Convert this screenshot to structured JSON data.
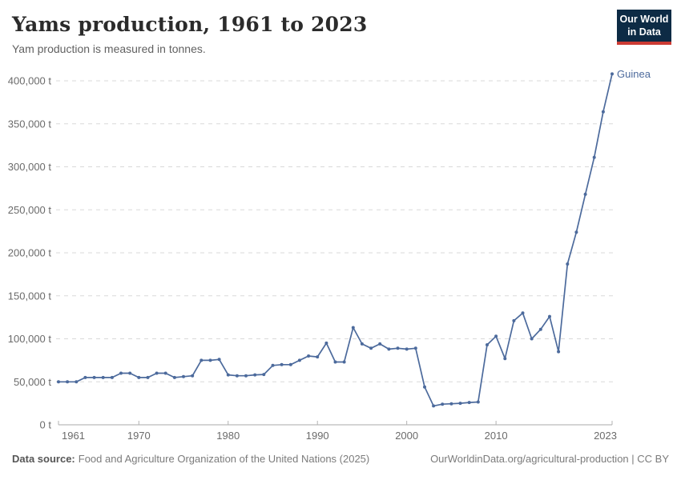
{
  "header": {
    "title": "Yams production, 1961 to 2023",
    "subtitle": "Yam production is measured in tonnes.",
    "logo": {
      "line1": "Our World",
      "line2": "in Data",
      "bg_color": "#0d2b45",
      "accent_color": "#cc3b34"
    }
  },
  "chart_data": {
    "type": "line",
    "title": "Yams production, 1961 to 2023",
    "unit": "tonnes",
    "unit_suffix": " t",
    "grid": "horizontal-dashed",
    "legend_position": "end-of-line-label",
    "xlim": [
      1961,
      2023
    ],
    "ylim": [
      0,
      400000
    ],
    "x_ticks": [
      1961,
      1970,
      1980,
      1990,
      2000,
      2010,
      2023
    ],
    "y_ticks": [
      0,
      50000,
      100000,
      150000,
      200000,
      250000,
      300000,
      350000,
      400000
    ],
    "x": [
      1961,
      1962,
      1963,
      1964,
      1965,
      1966,
      1967,
      1968,
      1969,
      1970,
      1971,
      1972,
      1973,
      1974,
      1975,
      1976,
      1977,
      1978,
      1979,
      1980,
      1981,
      1982,
      1983,
      1984,
      1985,
      1986,
      1987,
      1988,
      1989,
      1990,
      1991,
      1992,
      1993,
      1994,
      1995,
      1996,
      1997,
      1998,
      1999,
      2000,
      2001,
      2002,
      2003,
      2004,
      2005,
      2006,
      2007,
      2008,
      2009,
      2010,
      2011,
      2012,
      2013,
      2014,
      2015,
      2016,
      2017,
      2018,
      2019,
      2020,
      2021,
      2022,
      2023
    ],
    "series": [
      {
        "name": "Guinea",
        "color": "#4c6a9c",
        "values": [
          50000,
          50000,
          50000,
          55000,
          55000,
          55000,
          55000,
          60000,
          60000,
          55000,
          55000,
          60000,
          60000,
          55000,
          56000,
          57000,
          75000,
          75000,
          76000,
          58000,
          57000,
          57000,
          58000,
          58500,
          69000,
          70000,
          70000,
          75000,
          80000,
          79000,
          95000,
          73000,
          73000,
          113000,
          94000,
          89000,
          94000,
          88000,
          89000,
          88000,
          89000,
          44000,
          22000,
          24000,
          24500,
          25000,
          26000,
          26500,
          93000,
          103000,
          77000,
          121000,
          130000,
          100000,
          111000,
          126000,
          85000,
          187000,
          224000,
          268000,
          311000,
          364000,
          408000
        ]
      }
    ]
  },
  "footer": {
    "source_label": "Data source:",
    "source_text": "Food and Agriculture Organization of the United Nations (2025)",
    "link_text": "OurWorldinData.org/agricultural-production | CC BY"
  }
}
